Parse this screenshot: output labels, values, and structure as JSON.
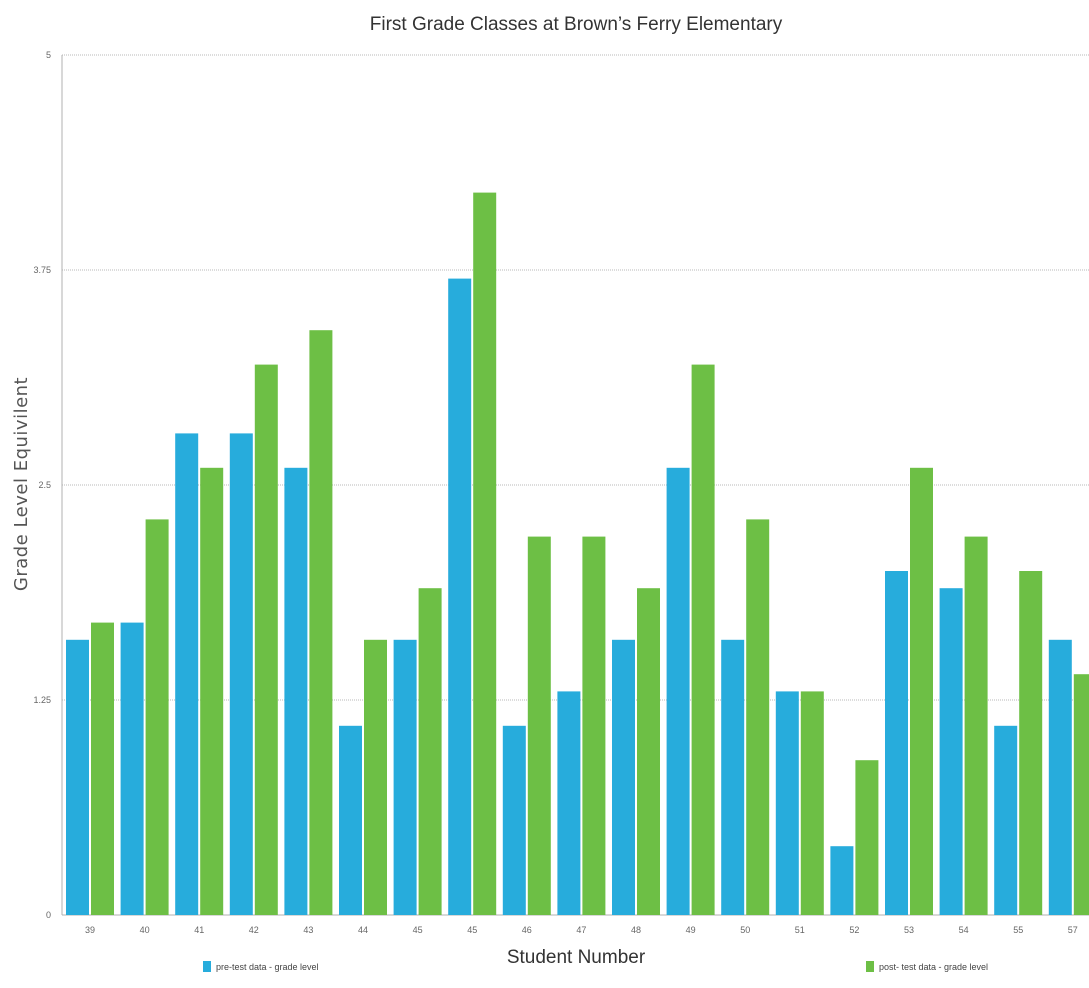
{
  "chart_data": {
    "type": "bar",
    "title": "First Grade Classes at Brown’s Ferry Elementary",
    "xlabel": "Student Number",
    "ylabel": "Grade Level Equivilent",
    "categories": [
      "39",
      "40",
      "41",
      "42",
      "43",
      "44",
      "45",
      "45",
      "46",
      "47",
      "48",
      "49",
      "50",
      "51",
      "52",
      "53",
      "54",
      "55",
      "57"
    ],
    "yticks": [
      0,
      1.25,
      2.5,
      3.75,
      5
    ],
    "ytick_labels": [
      "0",
      "1.25",
      "2.5",
      "3.75",
      "5"
    ],
    "ylim": [
      0,
      5
    ],
    "grid": true,
    "legend_position": "bottom",
    "series": [
      {
        "name": "pre-test data - grade level",
        "color": "#27acdc",
        "values": [
          1.6,
          1.7,
          2.8,
          2.8,
          2.6,
          1.1,
          1.6,
          3.7,
          1.1,
          1.3,
          1.6,
          2.6,
          1.6,
          1.3,
          0.4,
          2.0,
          1.9,
          1.1,
          1.6
        ]
      },
      {
        "name": "post- test data - grade level",
        "color": "#6dbf45",
        "values": [
          1.7,
          2.3,
          2.6,
          3.2,
          3.4,
          1.6,
          1.9,
          4.2,
          2.2,
          2.2,
          1.9,
          3.2,
          2.3,
          1.3,
          0.9,
          2.6,
          2.2,
          2.0,
          1.4
        ]
      }
    ]
  }
}
